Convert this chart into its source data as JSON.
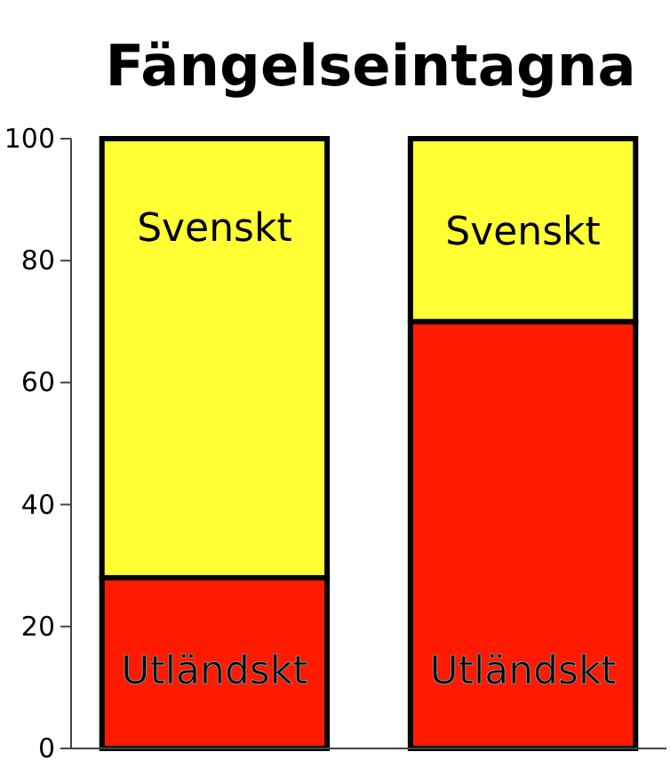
{
  "chart_data": {
    "type": "bar",
    "title": "Fängelseintagna",
    "stacked": true,
    "categories": [
      null,
      null
    ],
    "series": [
      {
        "name": "Utländskt",
        "color": "#ff1a00",
        "values": [
          28,
          70
        ]
      },
      {
        "name": "Svenskt",
        "color": "#ffff33",
        "values": [
          72,
          30
        ]
      }
    ],
    "ylim": [
      0,
      100
    ],
    "yticks": [
      0,
      20,
      40,
      60,
      80,
      100
    ],
    "grid": false
  }
}
